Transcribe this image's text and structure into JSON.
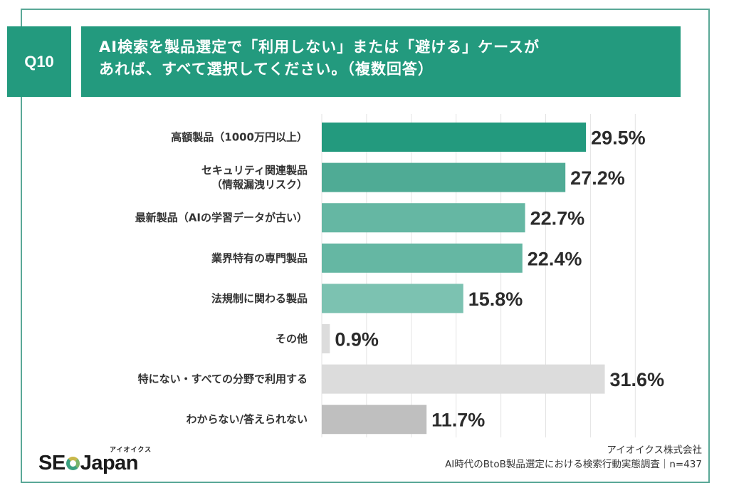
{
  "header": {
    "question_no": "Q10",
    "title_line1": "AI検索を製品選定で「利用しない」または「避ける」ケースが",
    "title_line2": "あれば、すべて選択してください。（複数回答）"
  },
  "chart_data": {
    "type": "bar",
    "orientation": "horizontal",
    "title": "AI検索を製品選定で「利用しない」または「避ける」ケースがあれば、すべて選択してください。（複数回答）",
    "xlabel": "",
    "ylabel": "",
    "xlim": [
      0,
      35
    ],
    "grid_step": 5,
    "grid": true,
    "unit": "%",
    "categories": [
      [
        "高額製品（1000万円以上）"
      ],
      [
        "セキュリティ関連製品",
        "（情報漏洩リスク）"
      ],
      [
        "最新製品（AIの学習データが古い）"
      ],
      [
        "業界特有の専門製品"
      ],
      [
        "法規制に関わる製品"
      ],
      [
        "その他"
      ],
      [
        "特にない・すべての分野で利用する"
      ],
      [
        "わからない/答えられない"
      ]
    ],
    "values": [
      29.5,
      27.2,
      22.7,
      22.4,
      15.8,
      0.9,
      31.6,
      11.7
    ],
    "value_labels": [
      "29.5%",
      "27.2%",
      "22.7%",
      "22.4%",
      "15.8%",
      "0.9%",
      "31.6%",
      "11.7%"
    ],
    "colors": [
      "#239a7e",
      "#4fab95",
      "#65b7a3",
      "#65b7a3",
      "#7cc2b1",
      "#dcdcdc",
      "#dcdcdc",
      "#bfbfbf"
    ]
  },
  "footer": {
    "logo_text_left": "SE",
    "logo_text_right": "Japan",
    "logo_kana": "アイオイクス",
    "company": "アイオイクス株式会社",
    "survey": "AI時代のBtoB製品選定における検索行動実態調査｜n=437"
  },
  "colors": {
    "accent": "#239a7e",
    "frame": "#5aa897"
  }
}
